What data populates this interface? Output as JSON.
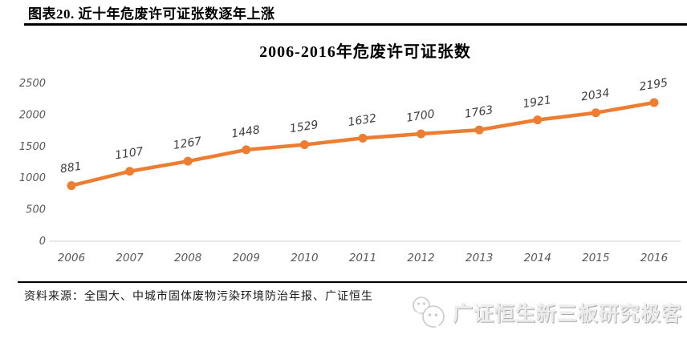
{
  "page": {
    "caption": "图表20. 近十年危废许可证张数逐年上涨",
    "source_note": "资料来源：全国大、中城市固体废物污染环境防治年报、广证恒生",
    "watermark_text": "广证恒生新三板研究极客"
  },
  "chart_data": {
    "type": "line",
    "title": "2006-2016年危废许可证张数",
    "categories": [
      "2006",
      "2007",
      "2008",
      "2009",
      "2010",
      "2011",
      "2012",
      "2013",
      "2014",
      "2015",
      "2016"
    ],
    "series": [
      {
        "name": "危废许可证张数",
        "values": [
          881,
          1107,
          1267,
          1448,
          1529,
          1632,
          1700,
          1763,
          1921,
          2034,
          2195
        ]
      }
    ],
    "xlabel": "",
    "ylabel": "",
    "ylim": [
      0,
      2500
    ],
    "yticks": [
      0,
      500,
      1000,
      1500,
      2000,
      2500
    ],
    "grid": false,
    "legend_position": "none",
    "data_labels": true,
    "line_color": "#ED7D31",
    "axis_line_color": "#D9D9D9",
    "tick_text_color": "#595959",
    "data_label_color": "#404040"
  }
}
